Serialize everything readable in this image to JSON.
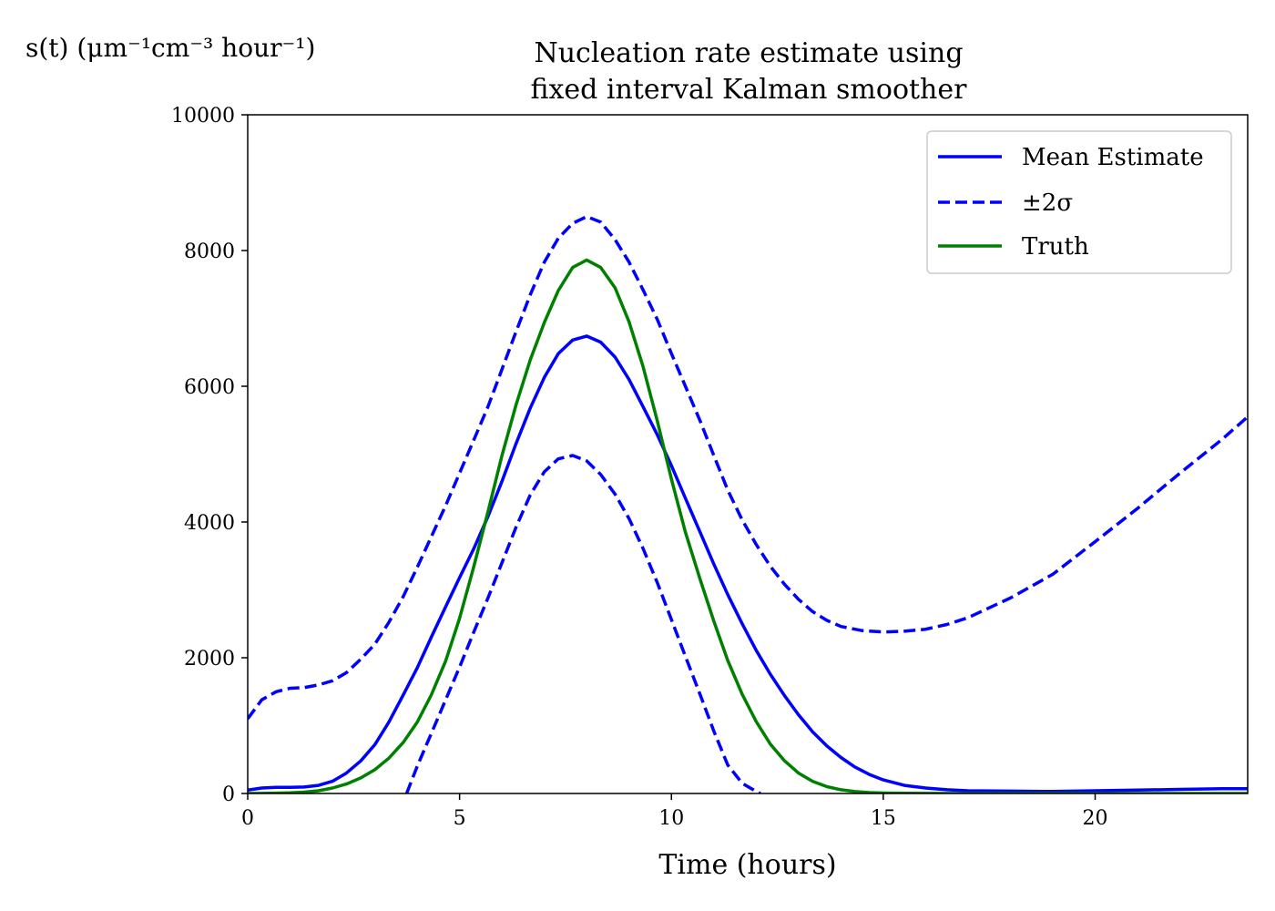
{
  "chart_data": {
    "type": "line",
    "title_line1": "Nucleation rate estimate using",
    "title_line2": "fixed interval Kalman smoother",
    "xlabel": "Time (hours)",
    "ylabel": "s(t) (μm⁻¹cm⁻³ hour⁻¹)",
    "xlim": [
      0,
      23.6
    ],
    "ylim": [
      0,
      10000
    ],
    "x_ticks": [
      0,
      5,
      10,
      15,
      20
    ],
    "y_ticks": [
      0,
      2000,
      4000,
      6000,
      8000,
      10000
    ],
    "grid": false,
    "legend_position": "top-right",
    "series": [
      {
        "name": "Mean Estimate",
        "style": "solid",
        "color": "#0000ff",
        "x": [
          0,
          0.33,
          0.67,
          1,
          1.33,
          1.67,
          2,
          2.33,
          2.67,
          3,
          3.33,
          3.67,
          4,
          4.33,
          4.67,
          5,
          5.33,
          5.67,
          6,
          6.33,
          6.67,
          7,
          7.33,
          7.67,
          8,
          8.33,
          8.67,
          9,
          9.33,
          9.67,
          10,
          10.33,
          10.67,
          11,
          11.33,
          11.67,
          12,
          12.33,
          12.67,
          13,
          13.33,
          13.67,
          14,
          14.33,
          14.67,
          15,
          15.5,
          16,
          16.5,
          17,
          18,
          19,
          20,
          21,
          22,
          23,
          23.6
        ],
        "y": [
          50,
          80,
          90,
          90,
          95,
          120,
          180,
          300,
          480,
          720,
          1050,
          1450,
          1850,
          2300,
          2750,
          3180,
          3600,
          4080,
          4600,
          5150,
          5680,
          6130,
          6480,
          6680,
          6740,
          6650,
          6430,
          6100,
          5700,
          5280,
          4830,
          4350,
          3860,
          3380,
          2930,
          2500,
          2110,
          1760,
          1440,
          1160,
          910,
          700,
          530,
          390,
          280,
          200,
          120,
          80,
          55,
          40,
          35,
          30,
          40,
          50,
          60,
          70,
          70
        ]
      },
      {
        "name": "±2σ",
        "style": "dashed",
        "color": "#0000ff",
        "x": [
          0,
          0.33,
          0.67,
          1,
          1.33,
          1.67,
          2,
          2.33,
          2.67,
          3,
          3.33,
          3.67,
          4,
          4.33,
          4.67,
          5,
          5.33,
          5.67,
          6,
          6.33,
          6.67,
          7,
          7.33,
          7.67,
          8,
          8.33,
          8.67,
          9,
          9.33,
          9.67,
          10,
          10.33,
          10.67,
          11,
          11.33,
          11.67,
          12,
          12.33,
          12.67,
          13,
          13.33,
          13.67,
          14,
          14.5,
          15,
          15.5,
          16,
          16.5,
          17,
          18,
          19,
          20,
          21,
          22,
          23,
          23.6
        ],
        "y": [
          1100,
          1380,
          1500,
          1550,
          1560,
          1600,
          1660,
          1780,
          1980,
          2200,
          2520,
          2900,
          3330,
          3780,
          4240,
          4720,
          5200,
          5700,
          6250,
          6800,
          7350,
          7830,
          8180,
          8400,
          8500,
          8420,
          8160,
          7830,
          7420,
          6980,
          6480,
          6000,
          5500,
          4980,
          4470,
          4030,
          3670,
          3350,
          3080,
          2860,
          2680,
          2550,
          2460,
          2400,
          2380,
          2390,
          2420,
          2490,
          2590,
          2880,
          3230,
          3710,
          4200,
          4720,
          5220,
          5550
        ]
      },
      {
        "name": "",
        "style": "dashed",
        "color": "#0000ff",
        "x": [
          3.75,
          4,
          4.33,
          4.67,
          5,
          5.33,
          5.67,
          6,
          6.33,
          6.67,
          7,
          7.33,
          7.67,
          8,
          8.33,
          8.67,
          9,
          9.33,
          9.67,
          10,
          10.33,
          10.67,
          11,
          11.33,
          11.67,
          12,
          12.1
        ],
        "y": [
          0,
          400,
          880,
          1380,
          1860,
          2370,
          2880,
          3400,
          3920,
          4400,
          4740,
          4930,
          4980,
          4900,
          4700,
          4410,
          4050,
          3610,
          3100,
          2560,
          2020,
          1470,
          920,
          420,
          150,
          30,
          0
        ]
      },
      {
        "name": "Truth",
        "style": "solid",
        "color": "#008000",
        "x": [
          0,
          0.33,
          0.67,
          1,
          1.33,
          1.67,
          2,
          2.33,
          2.67,
          3,
          3.33,
          3.67,
          4,
          4.33,
          4.67,
          5,
          5.33,
          5.67,
          6,
          6.33,
          6.67,
          7,
          7.33,
          7.67,
          8,
          8.33,
          8.67,
          9,
          9.33,
          9.67,
          10,
          10.33,
          10.67,
          11,
          11.33,
          11.67,
          12,
          12.33,
          12.67,
          13,
          13.33,
          13.67,
          14,
          14.33,
          14.67,
          15,
          15.5,
          16,
          17,
          18,
          20,
          23.6
        ],
        "y": [
          0,
          2,
          5,
          10,
          20,
          40,
          80,
          140,
          230,
          350,
          520,
          750,
          1050,
          1450,
          1950,
          2580,
          3330,
          4150,
          4980,
          5720,
          6390,
          6940,
          7410,
          7750,
          7860,
          7750,
          7450,
          6950,
          6290,
          5480,
          4630,
          3850,
          3170,
          2540,
          1960,
          1460,
          1060,
          730,
          480,
          300,
          180,
          100,
          55,
          28,
          14,
          7,
          3,
          1,
          0,
          0,
          0,
          0
        ]
      }
    ]
  }
}
